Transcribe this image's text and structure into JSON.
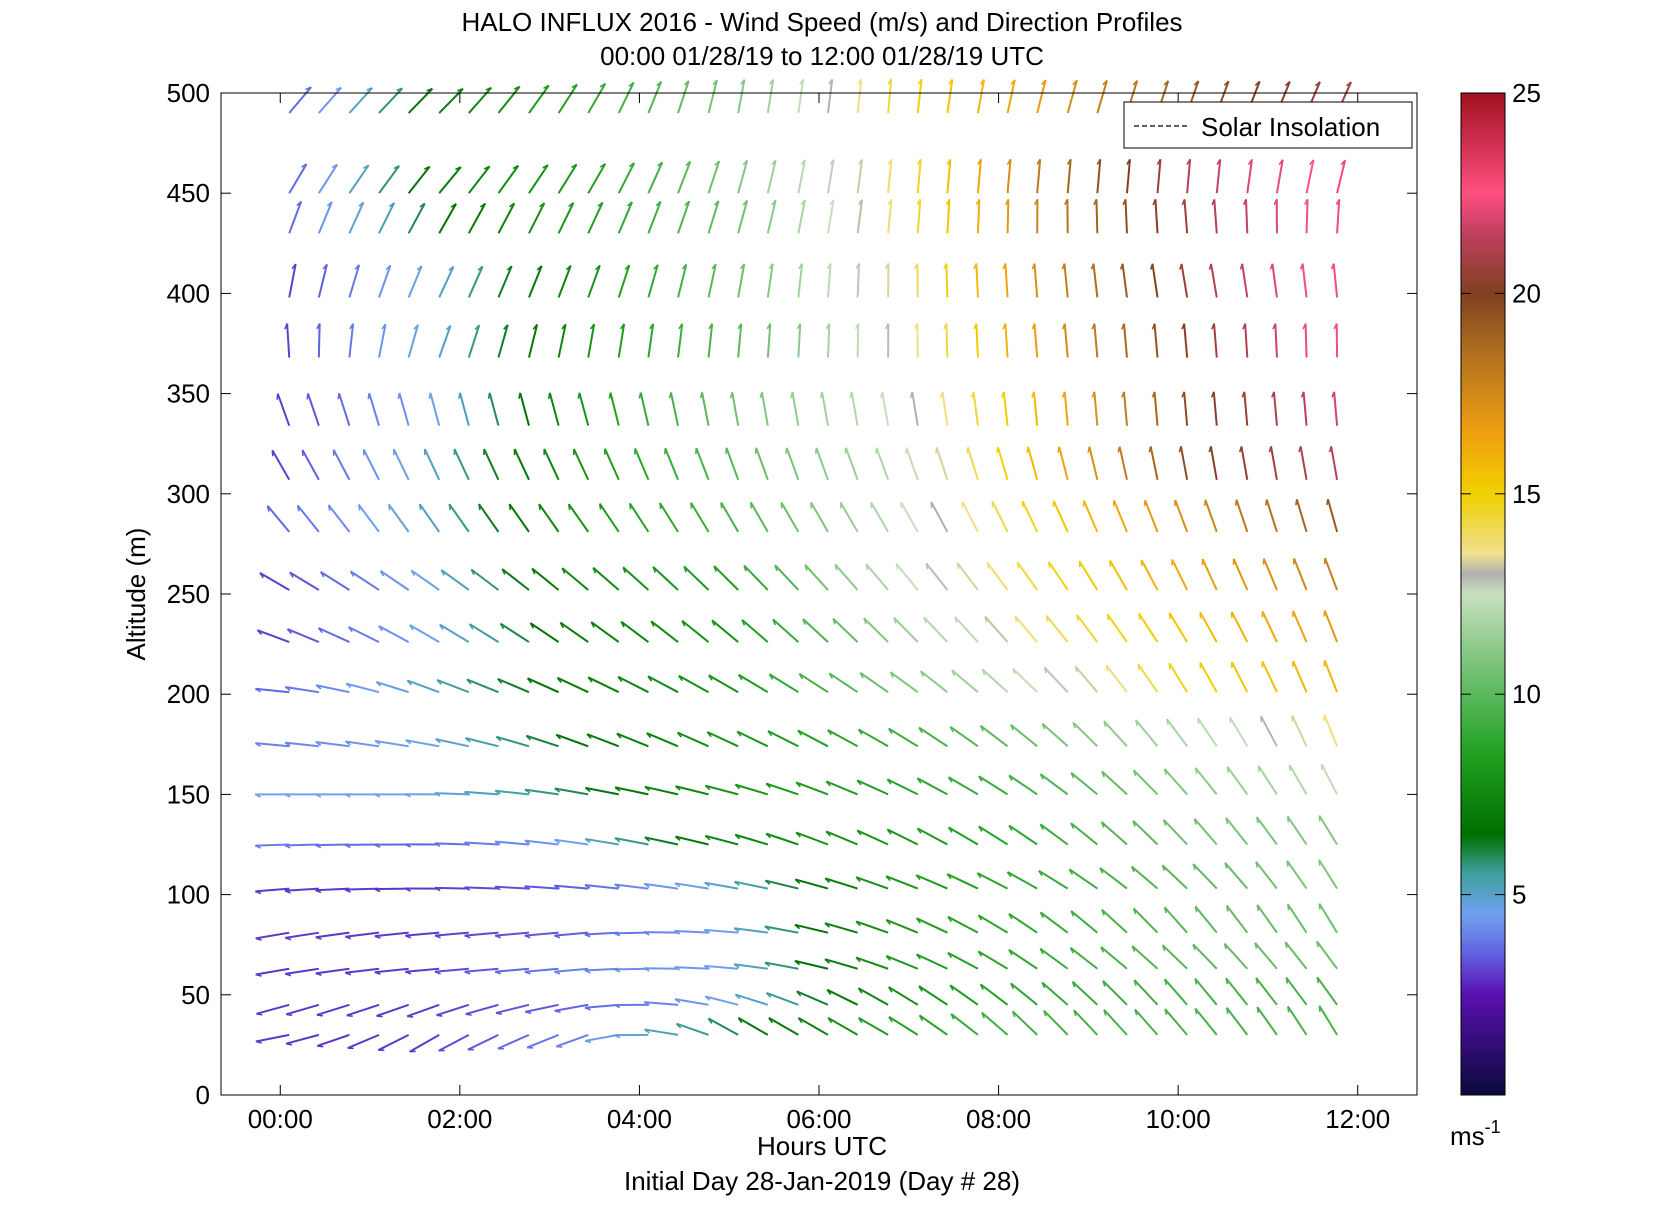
{
  "chart_data": {
    "type": "wind-barb-quiver",
    "title_line1": "HALO INFLUX 2016 - Wind Speed (m/s) and Direction Profiles",
    "title_line2": "00:00 01/28/19 to 12:00 01/28/19  UTC",
    "xlabel": "Hours UTC",
    "xlabel_sub": "Initial Day 28-Jan-2019 (Day # 28)",
    "ylabel": "Altitude (m)",
    "xlim": [
      -0.66,
      12.66
    ],
    "ylim": [
      0,
      500
    ],
    "x_ticks": [
      0,
      2,
      4,
      6,
      8,
      10,
      12
    ],
    "x_tick_labels": [
      "00:00",
      "02:00",
      "04:00",
      "06:00",
      "08:00",
      "10:00",
      "12:00"
    ],
    "y_ticks": [
      0,
      50,
      100,
      150,
      200,
      250,
      300,
      350,
      400,
      450,
      500
    ],
    "y_tick_labels": [
      "0",
      "50",
      "100",
      "150",
      "200",
      "250",
      "300",
      "350",
      "400",
      "450",
      "500"
    ],
    "legend": {
      "label": "Solar Insolation",
      "placement": "top-right"
    },
    "colorbar": {
      "ticks": [
        5,
        10,
        15,
        20,
        25
      ],
      "tick_labels": [
        "5",
        "10",
        "15",
        "20",
        "25"
      ],
      "range": [
        0,
        25
      ],
      "unit": "ms",
      "unit_exp": "-1",
      "stops": [
        {
          "v": 0,
          "c": "#0a0a3c"
        },
        {
          "v": 2.5,
          "c": "#5a10b0"
        },
        {
          "v": 3.5,
          "c": "#6060e0"
        },
        {
          "v": 4.5,
          "c": "#70a0f0"
        },
        {
          "v": 5.5,
          "c": "#40a0a0"
        },
        {
          "v": 6.5,
          "c": "#007000"
        },
        {
          "v": 8.5,
          "c": "#20a020"
        },
        {
          "v": 10.5,
          "c": "#70c070"
        },
        {
          "v": 12.5,
          "c": "#c8e0c0"
        },
        {
          "v": 13,
          "c": "#b0b0b0"
        },
        {
          "v": 13.5,
          "c": "#f0e090"
        },
        {
          "v": 15,
          "c": "#f0d000"
        },
        {
          "v": 16.5,
          "c": "#f0a010"
        },
        {
          "v": 18.5,
          "c": "#b07020"
        },
        {
          "v": 20,
          "c": "#804020"
        },
        {
          "v": 21.5,
          "c": "#c04060"
        },
        {
          "v": 22.5,
          "c": "#ff5080"
        },
        {
          "v": 25,
          "c": "#a01020"
        }
      ]
    },
    "altitudes": [
      30,
      45,
      63,
      81,
      103,
      125,
      150,
      174,
      201,
      226,
      252,
      281,
      307,
      334,
      368,
      398,
      430,
      450,
      490
    ],
    "times": [
      0.1,
      0.43,
      0.77,
      1.1,
      1.43,
      1.77,
      2.1,
      2.43,
      2.77,
      3.1,
      3.43,
      3.77,
      4.1,
      4.43,
      4.77,
      5.1,
      5.43,
      5.77,
      6.1,
      6.43,
      6.77,
      7.1,
      7.43,
      7.77,
      8.1,
      8.43,
      8.77,
      9.1,
      9.43,
      9.77,
      10.1,
      10.43,
      10.77,
      11.1,
      11.43,
      11.77
    ],
    "anchors": {
      "speed": [
        [
          3.0,
          3.0,
          4.0,
          6.0,
          8.5,
          9.5,
          9.5,
          9.5
        ],
        [
          3.0,
          3.0,
          3.5,
          4.5,
          7.5,
          9.0,
          9.5,
          9.5
        ],
        [
          3.0,
          3.0,
          4.0,
          4.5,
          8.0,
          9.0,
          10.0,
          10.5
        ],
        [
          3.0,
          3.0,
          3.5,
          4.5,
          8.0,
          9.0,
          10.0,
          10.5
        ],
        [
          3.0,
          3.0,
          3.5,
          5.0,
          8.0,
          9.0,
          10.0,
          11.0
        ],
        [
          4.0,
          3.5,
          4.5,
          7.5,
          8.0,
          9.0,
          10.5,
          11.0
        ],
        [
          4.5,
          4.5,
          6.0,
          8.0,
          8.5,
          9.5,
          11.0,
          12.5
        ],
        [
          4.0,
          4.5,
          6.5,
          8.0,
          9.0,
          10.5,
          12.0,
          14.0
        ],
        [
          3.5,
          5.0,
          7.0,
          8.0,
          10.5,
          12.5,
          15.0,
          16.0
        ],
        [
          3.0,
          4.5,
          7.0,
          8.0,
          11.0,
          14.0,
          15.5,
          17.0
        ],
        [
          3.0,
          4.5,
          7.5,
          8.5,
          12.0,
          14.5,
          16.5,
          18.0
        ],
        [
          3.5,
          5.0,
          8.0,
          9.5,
          12.0,
          15.0,
          17.5,
          19.5
        ],
        [
          3.0,
          5.0,
          8.0,
          10.0,
          12.0,
          16.0,
          20.0,
          21.5
        ],
        [
          3.0,
          4.5,
          8.0,
          10.5,
          12.5,
          16.0,
          20.0,
          22.0
        ],
        [
          3.0,
          5.0,
          8.0,
          10.0,
          13.0,
          17.0,
          20.5,
          23.0
        ],
        [
          3.0,
          5.0,
          8.0,
          10.5,
          13.5,
          17.5,
          21.0,
          23.0
        ],
        [
          3.5,
          6.5,
          8.5,
          10.5,
          14.0,
          18.0,
          21.0,
          23.0
        ],
        [
          3.5,
          7.0,
          8.5,
          11.0,
          14.0,
          18.5,
          21.5,
          23.0
        ],
        [
          3.5,
          7.0,
          9.0,
          11.0,
          14.5,
          17.0,
          19.5,
          21.0
        ]
      ],
      "direction": [
        [
          260,
          240,
          250,
          300,
          300,
          315,
          320,
          330
        ],
        [
          255,
          250,
          260,
          285,
          300,
          310,
          320,
          325
        ],
        [
          260,
          265,
          265,
          275,
          290,
          305,
          315,
          325
        ],
        [
          260,
          265,
          265,
          275,
          290,
          305,
          320,
          330
        ],
        [
          265,
          270,
          275,
          280,
          290,
          300,
          315,
          330
        ],
        [
          268,
          270,
          278,
          285,
          295,
          305,
          318,
          330
        ],
        [
          270,
          270,
          280,
          285,
          295,
          305,
          320,
          335
        ],
        [
          275,
          280,
          290,
          295,
          300,
          310,
          325,
          340
        ],
        [
          275,
          290,
          295,
          300,
          305,
          315,
          330,
          340
        ],
        [
          290,
          300,
          305,
          310,
          315,
          320,
          330,
          340
        ],
        [
          300,
          305,
          310,
          315,
          320,
          325,
          335,
          340
        ],
        [
          320,
          325,
          325,
          330,
          330,
          335,
          340,
          345
        ],
        [
          330,
          335,
          335,
          340,
          340,
          345,
          350,
          350
        ],
        [
          340,
          345,
          345,
          350,
          350,
          355,
          355,
          355
        ],
        [
          355,
          20,
          10,
          5,
          0,
          355,
          355,
          0
        ],
        [
          10,
          25,
          20,
          10,
          0,
          355,
          350,
          355
        ],
        [
          20,
          30,
          25,
          15,
          5,
          0,
          355,
          5
        ],
        [
          30,
          40,
          30,
          15,
          5,
          5,
          5,
          15
        ],
        [
          40,
          45,
          30,
          10,
          5,
          15,
          20,
          25
        ]
      ]
    }
  }
}
